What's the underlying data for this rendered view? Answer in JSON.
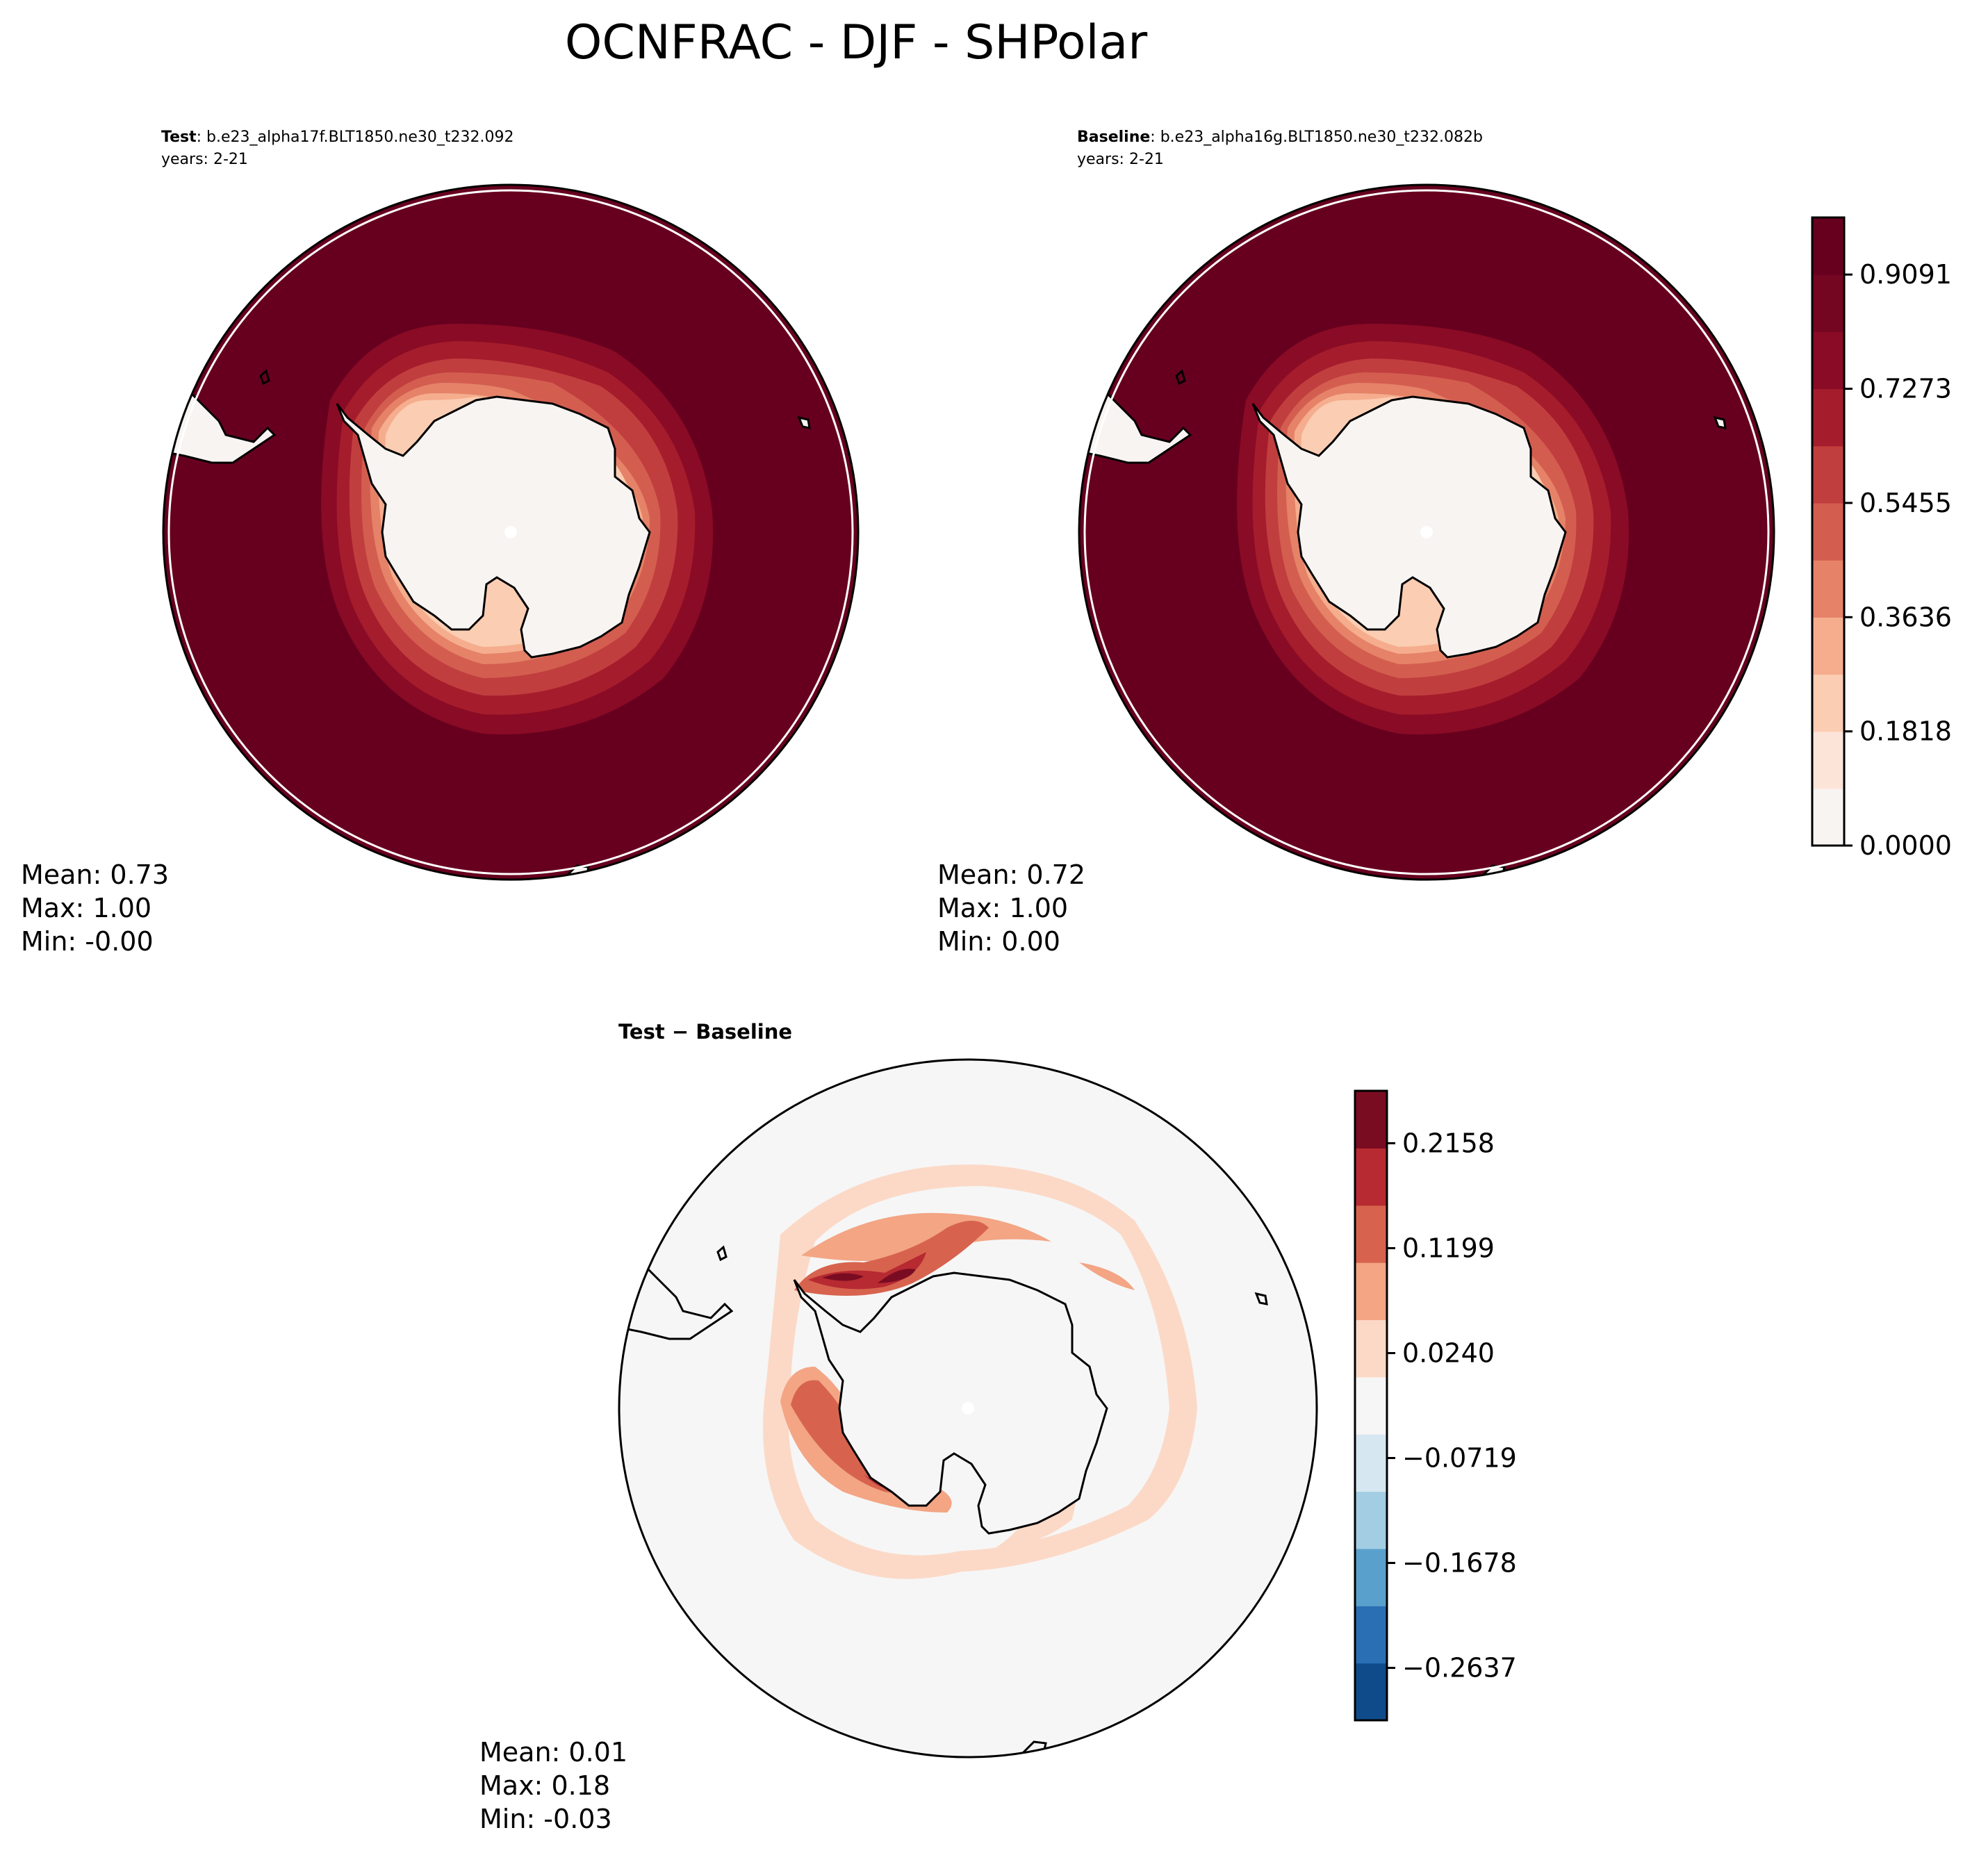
{
  "title": "OCNFRAC - DJF - SHPolar",
  "palette": {
    "rdbu_11": [
      "#f7f4f2",
      "#fde4d8",
      "#fbcdb3",
      "#f5ad8e",
      "#e58268",
      "#d35e50",
      "#c13e3e",
      "#a51c2c",
      "#8a0b25",
      "#750622",
      "#67001f"
    ],
    "diff_10": [
      "#0f4b8a",
      "#2a6fb3",
      "#5aa0cd",
      "#a2cde3",
      "#d6e7f1",
      "#f6f6f6",
      "#fcd9c7",
      "#f3a584",
      "#d7634f",
      "#b72a31",
      "#7a0c22"
    ],
    "coast": "#000000",
    "land_diff": "#f6f6f6"
  },
  "panels": {
    "test": {
      "label_bold": "Test",
      "label_rest": ": b.e23_alpha17f.BLT1850.ne30_t232.092",
      "years": "years: 2-21",
      "mean": "Mean:  0.73",
      "max": "Max:  1.00",
      "min": "Min: -0.00"
    },
    "baseline": {
      "label_bold": "Baseline",
      "label_rest": ": b.e23_alpha16g.BLT1850.ne30_t232.082b",
      "years": "years: 2-21",
      "mean": "Mean:  0.72",
      "max": "Max:  1.00",
      "min": "Min:  0.00"
    },
    "diff": {
      "label": "Test − Baseline",
      "mean": "Mean:  0.01",
      "max": "Max:  0.18",
      "min": "Min: -0.03"
    }
  },
  "chart_data": [
    {
      "type": "heatmap",
      "name": "Test",
      "projection": "South polar stereographic",
      "variable": "OCNFRAC",
      "season": "DJF",
      "stats": {
        "mean": 0.73,
        "max": 1.0,
        "min": -0.0
      }
    },
    {
      "type": "heatmap",
      "name": "Baseline",
      "projection": "South polar stereographic",
      "variable": "OCNFRAC",
      "season": "DJF",
      "stats": {
        "mean": 0.72,
        "max": 1.0,
        "min": 0.0
      }
    },
    {
      "type": "heatmap",
      "name": "Test − Baseline",
      "projection": "South polar stereographic",
      "variable": "OCNFRAC",
      "season": "DJF",
      "stats": {
        "mean": 0.01,
        "max": 0.18,
        "min": -0.03
      }
    }
  ],
  "colorbars": {
    "main": {
      "range": [
        0.0,
        1.0
      ],
      "levels": 11,
      "ticks": [
        0.0,
        0.1818,
        0.3636,
        0.5455,
        0.7273,
        0.9091
      ],
      "tick_labels": [
        "0.0000",
        "0.1818",
        "0.3636",
        "0.5455",
        "0.7273",
        "0.9091"
      ]
    },
    "diff": {
      "range": [
        -0.3116,
        0.2637
      ],
      "levels": 12,
      "ticks": [
        -0.2637,
        -0.1678,
        -0.0719,
        0.024,
        0.1199,
        0.2158
      ],
      "tick_labels": [
        "−0.2637",
        "−0.1678",
        "−0.0719",
        "0.0240",
        "0.1199",
        "0.2158"
      ]
    }
  }
}
